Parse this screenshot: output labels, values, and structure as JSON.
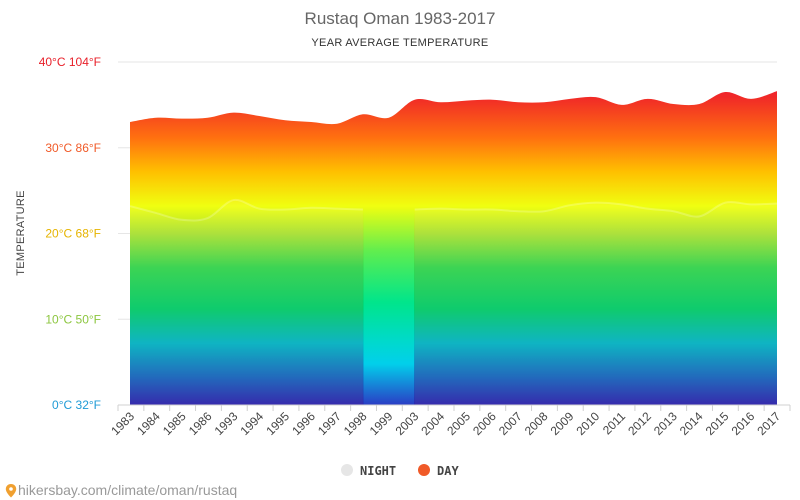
{
  "chart_data": {
    "type": "area",
    "title": "Rustaq Oman 1983-2017",
    "subtitle": "YEAR AVERAGE TEMPERATURE",
    "ylabel": "TEMPERATURE",
    "xlabel": "",
    "ylim": [
      0,
      40
    ],
    "y_ticks": [
      {
        "value": 0,
        "label": "0°C 32°F",
        "color": "#1f9bd6"
      },
      {
        "value": 10,
        "label": "10°C 50°F",
        "color": "#8cc63f"
      },
      {
        "value": 20,
        "label": "20°C 68°F",
        "color": "#e6b400"
      },
      {
        "value": 30,
        "label": "30°C 86°F",
        "color": "#f05a28"
      },
      {
        "value": 40,
        "label": "40°C 104°F",
        "color": "#e8202a"
      }
    ],
    "categories": [
      "1983",
      "1984",
      "1985",
      "1986",
      "1993",
      "1994",
      "1995",
      "1996",
      "1997",
      "1998",
      "1999",
      "2003",
      "2004",
      "2005",
      "2006",
      "2007",
      "2008",
      "2009",
      "2010",
      "2011",
      "2012",
      "2013",
      "2014",
      "2015",
      "2016",
      "2017"
    ],
    "series": [
      {
        "name": "NIGHT",
        "color": "#e6e6e6",
        "values": [
          23.2,
          22.4,
          21.6,
          21.8,
          23.9,
          22.9,
          22.8,
          23.0,
          22.9,
          22.8,
          0,
          22.8,
          22.9,
          22.8,
          22.8,
          22.6,
          22.6,
          23.3,
          23.6,
          23.4,
          22.9,
          22.6,
          22.0,
          23.6,
          23.4,
          23.5
        ]
      },
      {
        "name": "DAY",
        "color": "#f05a28",
        "values": [
          33.0,
          33.5,
          33.4,
          33.5,
          34.1,
          33.7,
          33.2,
          33.0,
          32.8,
          33.9,
          33.5,
          35.6,
          35.3,
          35.5,
          35.6,
          35.3,
          35.3,
          35.7,
          35.9,
          35.0,
          35.7,
          35.1,
          35.1,
          36.5,
          35.7,
          36.6
        ]
      }
    ],
    "grid": true,
    "legend_position": "bottom"
  },
  "source": "hikersbay.com/climate/oman/rustaq",
  "colors": {
    "gradient": [
      "#2222aa",
      "#00b0c8",
      "#00c853",
      "#8cd63a",
      "#f0ff00",
      "#ffb000",
      "#ff5a14",
      "#f01446"
    ]
  }
}
